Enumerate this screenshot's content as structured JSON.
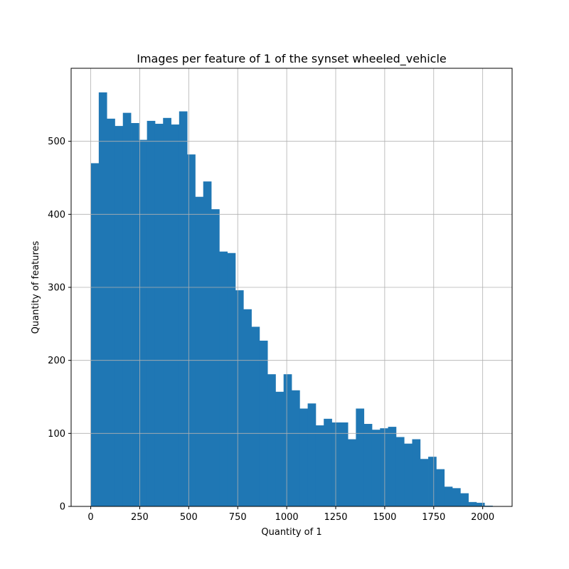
{
  "chart_data": {
    "type": "bar",
    "title": "Images per feature of 1 of the synset wheeled_vehicle",
    "xlabel": "Quantity of 1",
    "ylabel": "Quantity of features",
    "xlim": [
      -100,
      2150
    ],
    "ylim": [
      0,
      600
    ],
    "x_ticks": [
      0,
      250,
      500,
      750,
      1000,
      1250,
      1500,
      1750,
      2000
    ],
    "y_ticks": [
      0,
      100,
      200,
      300,
      400,
      500
    ],
    "bin_width": 41,
    "bin_start": 0,
    "values": [
      470,
      567,
      531,
      521,
      539,
      525,
      502,
      528,
      524,
      532,
      523,
      541,
      482,
      424,
      445,
      407,
      349,
      347,
      296,
      270,
      246,
      227,
      181,
      157,
      181,
      159,
      134,
      141,
      111,
      120,
      115,
      115,
      92,
      134,
      113,
      105,
      107,
      109,
      95,
      86,
      92,
      65,
      68,
      51,
      27,
      25,
      18,
      6,
      5,
      1
    ],
    "grid": true,
    "bar_color": "#1f77b4"
  }
}
